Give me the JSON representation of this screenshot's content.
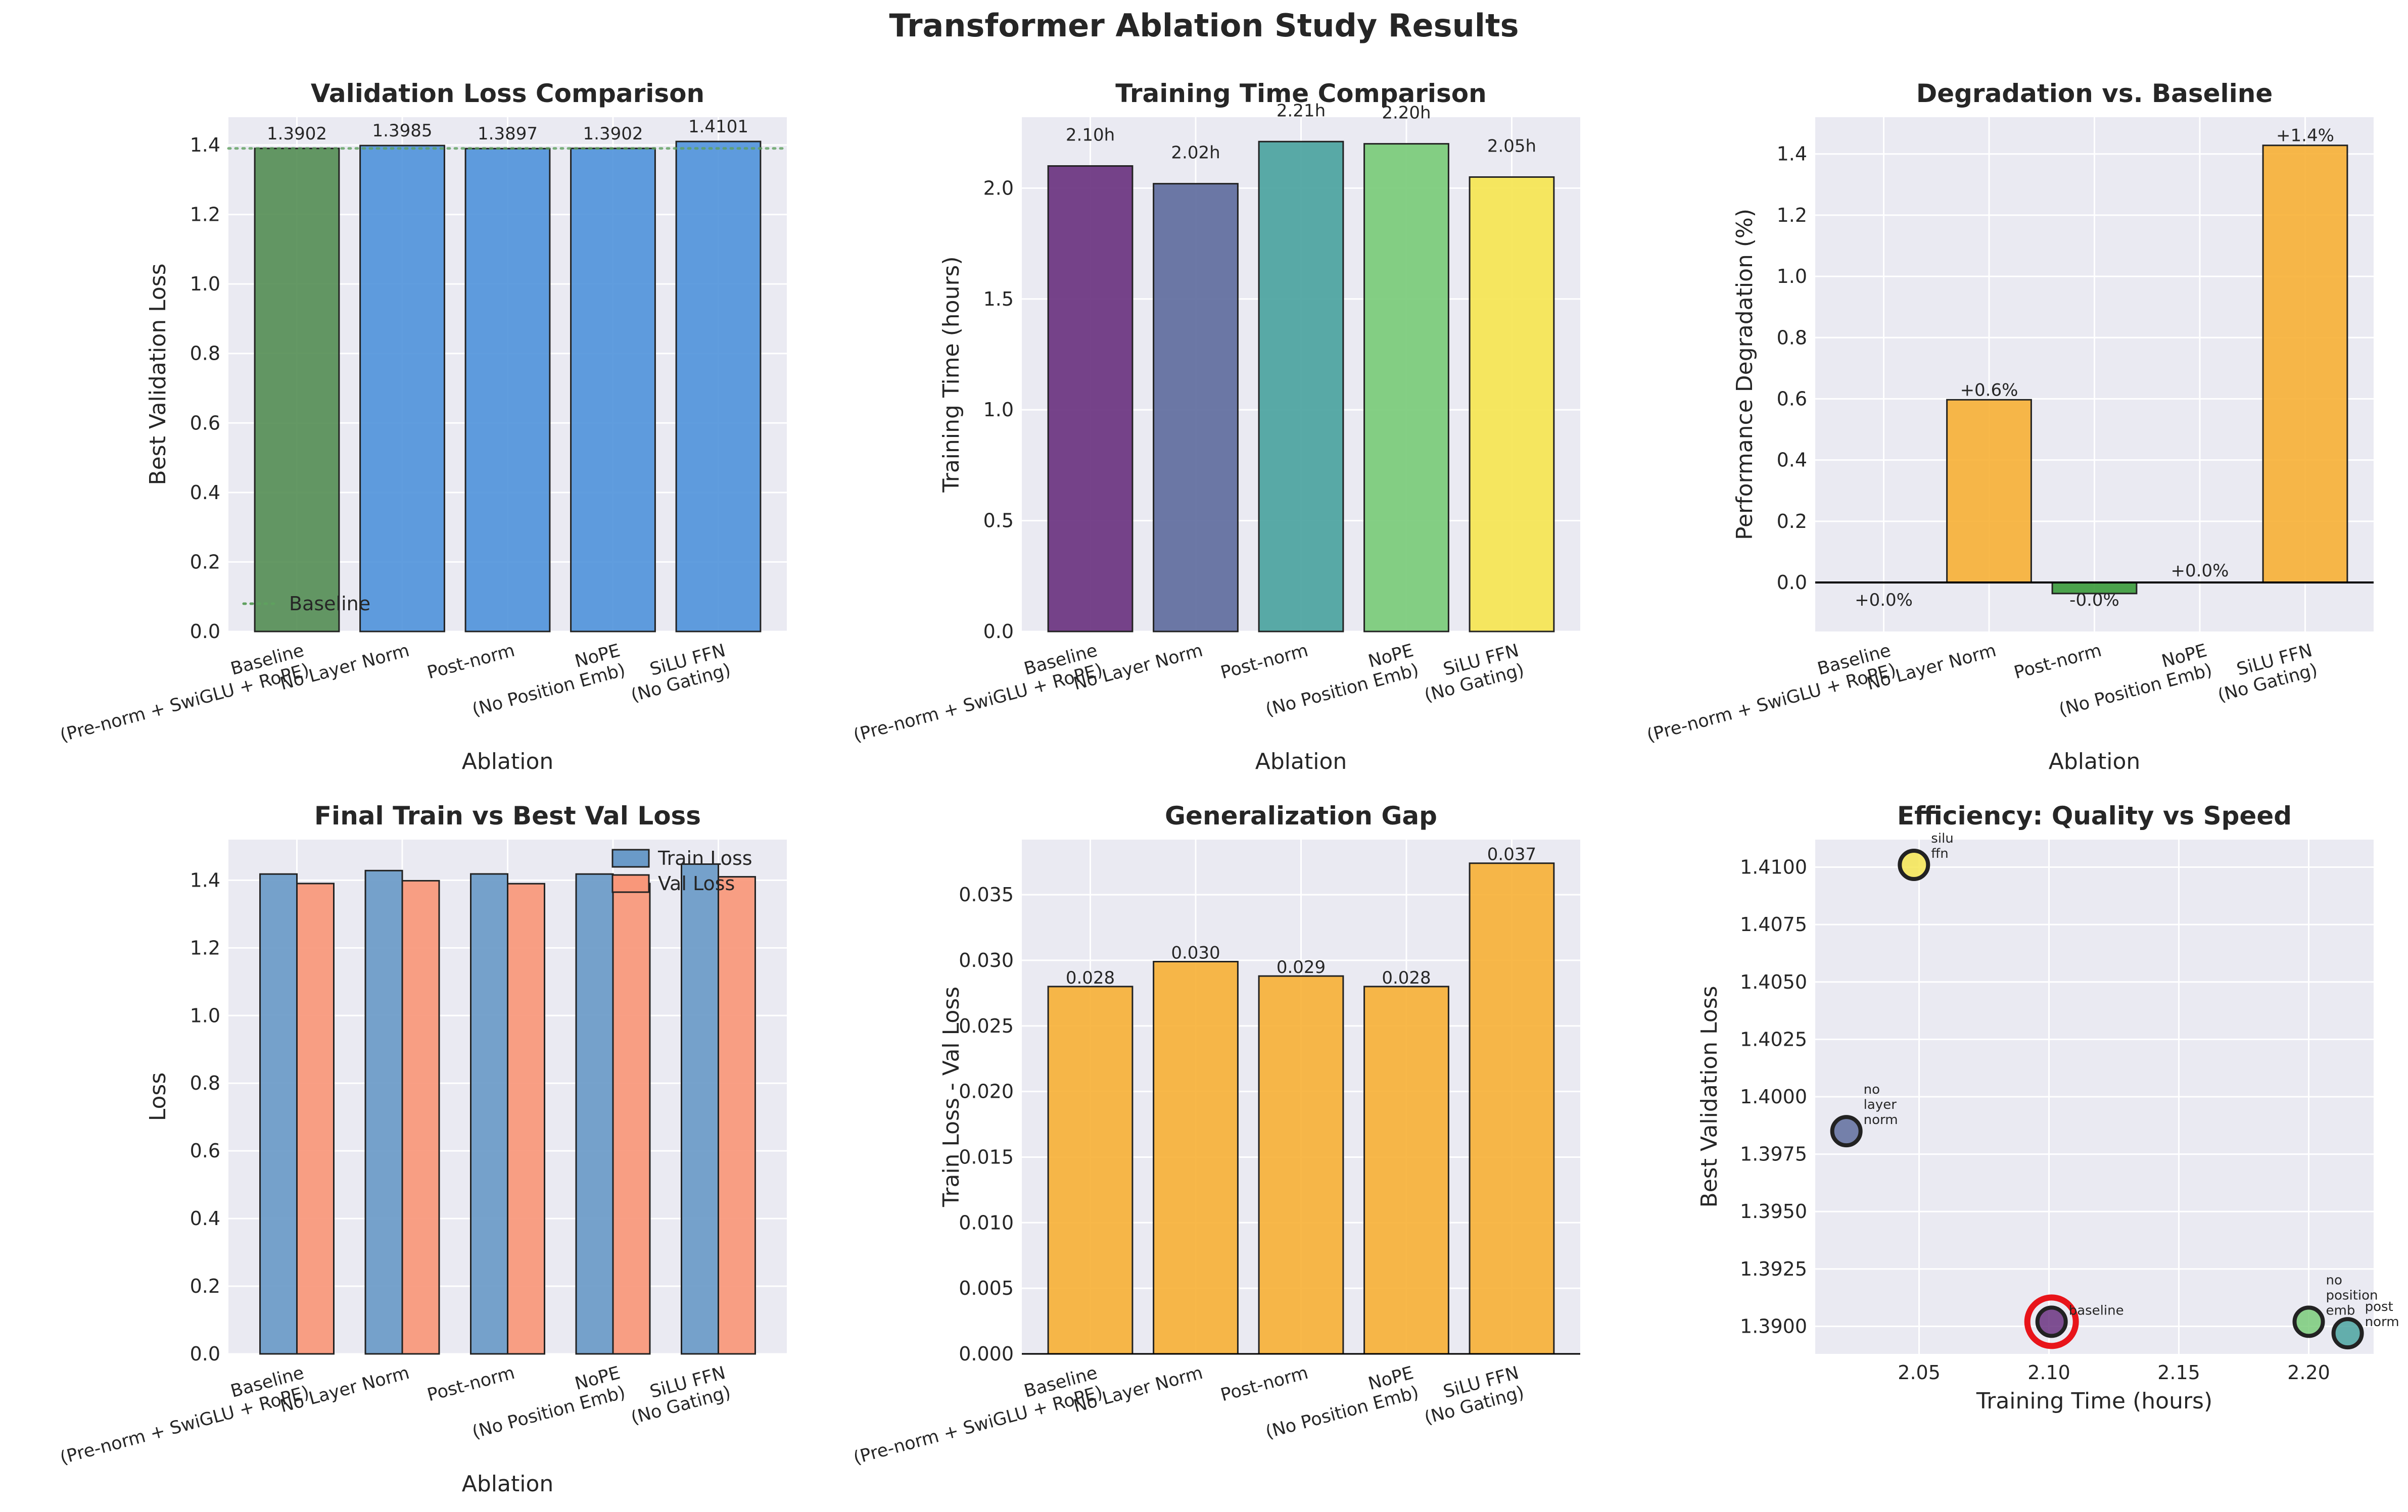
{
  "figure": {
    "title": "Transformer Ablation Study Results"
  },
  "colors": {
    "plot_bg": "#EAEAF2",
    "grid": "#FFFFFF",
    "baseline_green": "#4E8A4E",
    "ablation_blue": "#4A90D9",
    "orange": "#F7B035",
    "neg_green": "#3A9A3A",
    "train_blue": "#6A9AC8",
    "val_salmon": "#F9977A",
    "baseline_line": "#5FA05F",
    "highlight_red": "#E8141A",
    "viridis": [
      "#6A3380",
      "#5F6D9E",
      "#4BA3A0",
      "#7ACB7A",
      "#F5E552"
    ]
  },
  "chart_data": [
    {
      "type": "bar",
      "title": "Validation Loss Comparison",
      "xlabel": "Ablation",
      "ylabel": "Best Validation Loss",
      "categories": [
        "Baseline\n(Pre-norm + SwiGLU + RoPE)",
        "No Layer Norm",
        "Post-norm",
        "NoPE\n(No Position Emb)",
        "SiLU FFN\n(No Gating)"
      ],
      "values": [
        1.3902,
        1.3985,
        1.3897,
        1.3902,
        1.4101
      ],
      "value_labels": [
        "1.3902",
        "1.3985",
        "1.3897",
        "1.3902",
        "1.4101"
      ],
      "ylim": [
        0,
        1.48
      ],
      "yticks": [
        0.0,
        0.2,
        0.4,
        0.6,
        0.8,
        1.0,
        1.2,
        1.4
      ],
      "baseline_value": 1.3902,
      "legend": [
        {
          "name": "Baseline",
          "style": "dotted-line"
        }
      ],
      "legend_position": "lower-left",
      "grid": true
    },
    {
      "type": "bar",
      "title": "Training Time Comparison",
      "xlabel": "Ablation",
      "ylabel": "Training Time (hours)",
      "categories": [
        "Baseline\n(Pre-norm + SwiGLU + RoPE)",
        "No Layer Norm",
        "Post-norm",
        "NoPE\n(No Position Emb)",
        "SiLU FFN\n(No Gating)"
      ],
      "values": [
        2.1,
        2.02,
        2.21,
        2.2,
        2.05
      ],
      "value_labels": [
        "2.10h",
        "2.02h",
        "2.21h",
        "2.20h",
        "2.05h"
      ],
      "ylim": [
        0,
        2.32
      ],
      "yticks": [
        0.0,
        0.5,
        1.0,
        1.5,
        2.0
      ],
      "grid": true
    },
    {
      "type": "bar",
      "title": "Degradation vs. Baseline",
      "xlabel": "Ablation",
      "ylabel": "Performance Degradation (%)",
      "categories": [
        "Baseline\n(Pre-norm + SwiGLU + RoPE)",
        "No Layer Norm",
        "Post-norm",
        "NoPE\n(No Position Emb)",
        "SiLU FFN\n(No Gating)"
      ],
      "values": [
        0.0,
        0.597,
        -0.036,
        0.0,
        1.428
      ],
      "value_labels": [
        "+0.0%",
        "+0.6%",
        "-0.0%",
        "+0.0%",
        "+1.4%"
      ],
      "ylim": [
        -0.16,
        1.52
      ],
      "yticks": [
        0.0,
        0.2,
        0.4,
        0.6,
        0.8,
        1.0,
        1.2,
        1.4
      ],
      "grid": true
    },
    {
      "type": "bar",
      "title": "Final Train vs Best Val Loss",
      "xlabel": "Ablation",
      "ylabel": "Loss",
      "categories": [
        "Baseline\n(Pre-norm + SwiGLU + RoPE)",
        "No Layer Norm",
        "Post-norm",
        "NoPE\n(No Position Emb)",
        "SiLU FFN\n(No Gating)"
      ],
      "series": [
        {
          "name": "Train Loss",
          "values": [
            1.4182,
            1.4284,
            1.4185,
            1.4182,
            1.4475
          ]
        },
        {
          "name": "Val Loss",
          "values": [
            1.3902,
            1.3985,
            1.3897,
            1.3902,
            1.4101
          ]
        }
      ],
      "ylim": [
        0,
        1.52
      ],
      "yticks": [
        0.0,
        0.2,
        0.4,
        0.6,
        0.8,
        1.0,
        1.2,
        1.4
      ],
      "legend_position": "top-right",
      "grid": true
    },
    {
      "type": "bar",
      "title": "Generalization Gap",
      "xlabel": "",
      "ylabel": "Train Loss - Val Loss",
      "categories": [
        "Baseline\n(Pre-norm + SwiGLU + RoPE)",
        "No Layer Norm",
        "Post-norm",
        "NoPE\n(No Position Emb)",
        "SiLU FFN\n(No Gating)"
      ],
      "values": [
        0.028,
        0.0299,
        0.0288,
        0.028,
        0.0374
      ],
      "value_labels": [
        "0.028",
        "0.030",
        "0.029",
        "0.028",
        "0.037"
      ],
      "ylim": [
        0,
        0.0392
      ],
      "yticks": [
        0.0,
        0.005,
        0.01,
        0.015,
        0.02,
        0.025,
        0.03,
        0.035
      ],
      "ytick_labels": [
        "0.000",
        "0.005",
        "0.010",
        "0.015",
        "0.020",
        "0.025",
        "0.030",
        "0.035"
      ],
      "grid": true
    },
    {
      "type": "scatter",
      "title": "Efficiency: Quality vs Speed",
      "xlabel": "Training Time (hours)",
      "ylabel": "Best Validation Loss",
      "points": [
        {
          "x": 2.101,
          "y": 1.3902,
          "label": [
            "baseline"
          ],
          "highlight": true
        },
        {
          "x": 2.022,
          "y": 1.3985,
          "label": [
            "no",
            "layer",
            "norm"
          ]
        },
        {
          "x": 2.215,
          "y": 1.3897,
          "label": [
            "post",
            "norm"
          ]
        },
        {
          "x": 2.2,
          "y": 1.3902,
          "label": [
            "no",
            "position",
            "emb"
          ]
        },
        {
          "x": 2.048,
          "y": 1.4101,
          "label": [
            "silu",
            "ffn"
          ]
        }
      ],
      "xlim": [
        2.01,
        2.225
      ],
      "ylim": [
        1.3888,
        1.4112
      ],
      "xticks": [
        2.05,
        2.1,
        2.15,
        2.2
      ],
      "xtick_labels": [
        "2.05",
        "2.10",
        "2.15",
        "2.20"
      ],
      "yticks": [
        1.39,
        1.3925,
        1.395,
        1.3975,
        1.4,
        1.4025,
        1.405,
        1.4075,
        1.41
      ],
      "ytick_labels": [
        "1.3900",
        "1.3925",
        "1.3950",
        "1.3975",
        "1.4000",
        "1.4025",
        "1.4050",
        "1.4075",
        "1.4100"
      ],
      "grid": true
    }
  ]
}
